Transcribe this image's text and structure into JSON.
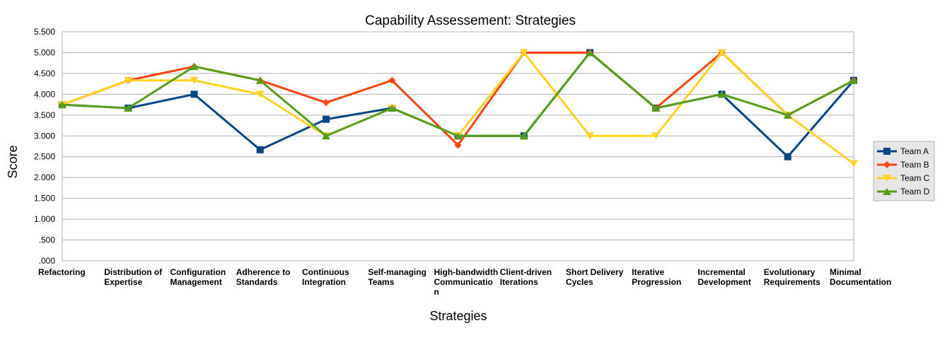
{
  "chart_data": {
    "type": "line",
    "title": "Capability Assessement: Strategies",
    "xlabel": "Strategies",
    "ylabel": "Score",
    "ylim": [
      0,
      5.5
    ],
    "ytick_step": 0.5,
    "ytick_labels": [
      ".000",
      ".500",
      "1.000",
      "1.500",
      "2.000",
      "2.500",
      "3.000",
      "3.500",
      "4.000",
      "4.500",
      "5.000",
      "5.500"
    ],
    "grid": true,
    "legend_position": "right",
    "categories": [
      [
        "Refactoring"
      ],
      [
        "Distribution of",
        "Expertise"
      ],
      [
        "Configuration",
        "Management"
      ],
      [
        "Adherence to",
        "Standards"
      ],
      [
        "Continuous",
        "Integration"
      ],
      [
        "Self-managing",
        "Teams"
      ],
      [
        "High-bandwidth",
        "Communicatio",
        "n"
      ],
      [
        "Client-driven",
        "Iterations"
      ],
      [
        "Short Delivery",
        "Cycles"
      ],
      [
        "Iterative",
        "Progression"
      ],
      [
        "Incremental",
        "Development"
      ],
      [
        "Evolutionary",
        "Requirements"
      ],
      [
        "Minimal",
        "Documentation"
      ]
    ],
    "series": [
      {
        "name": "Team A",
        "color": "#004586",
        "marker": "square",
        "values": [
          3.75,
          3.667,
          4.0,
          2.667,
          3.4,
          3.667,
          3.0,
          3.0,
          5.0,
          3.667,
          4.0,
          2.5,
          4.333
        ]
      },
      {
        "name": "Team B",
        "color": "#ff420e",
        "marker": "diamond",
        "values": [
          3.75,
          4.333,
          4.667,
          4.333,
          3.8,
          4.333,
          2.778,
          5.0,
          5.0,
          3.667,
          5.0,
          3.5,
          4.333
        ]
      },
      {
        "name": "Team C",
        "color": "#ffd320",
        "marker": "triangle-down",
        "values": [
          3.75,
          4.333,
          4.333,
          4.0,
          3.0,
          3.667,
          3.0,
          5.0,
          3.0,
          3.0,
          5.0,
          3.5,
          2.333
        ]
      },
      {
        "name": "Team D",
        "color": "#579d1c",
        "marker": "triangle-up",
        "values": [
          3.75,
          3.667,
          4.667,
          4.333,
          3.0,
          3.667,
          3.0,
          3.0,
          5.0,
          3.667,
          4.0,
          3.5,
          4.333
        ]
      }
    ]
  }
}
